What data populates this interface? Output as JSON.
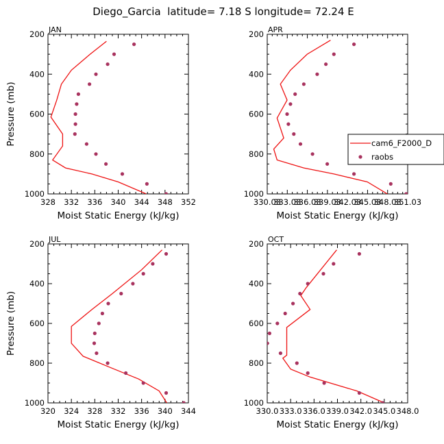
{
  "figure_title": "Diego_Garcia  latitude= 7.18 S longitude= 72.24 E",
  "colors": {
    "model": "#ee1111",
    "obs": "#a8325e",
    "axis": "#000000"
  },
  "chart_data": [
    {
      "type": "line",
      "panel_label": "JAN",
      "xlabel": "Moist Static Energy (kJ/kg)",
      "ylabel": "Pressure (mb)",
      "xlim": [
        328,
        352
      ],
      "ylim": [
        1000,
        200
      ],
      "x_ticks": [
        "328",
        "332",
        "336",
        "340",
        "344",
        "348",
        "352"
      ],
      "y_ticks": [
        "200",
        "400",
        "600",
        "800",
        "1000"
      ],
      "series": [
        {
          "name": "cam6_F2000_D",
          "style": "line",
          "points": [
            [
              338.0,
              235
            ],
            [
              335.2,
              300
            ],
            [
              332.0,
              380
            ],
            [
              330.3,
              450
            ],
            [
              329.5,
              530
            ],
            [
              328.5,
              615
            ],
            [
              330.5,
              700
            ],
            [
              330.5,
              760
            ],
            [
              328.8,
              830
            ],
            [
              331.0,
              870
            ],
            [
              335.5,
              900
            ],
            [
              340.0,
              940
            ],
            [
              344.8,
              1000
            ]
          ]
        },
        {
          "name": "raobs",
          "style": "marker",
          "points": [
            [
              342.7,
              250
            ],
            [
              339.3,
              300
            ],
            [
              338.2,
              350
            ],
            [
              336.2,
              400
            ],
            [
              335.1,
              450
            ],
            [
              333.2,
              500
            ],
            [
              332.9,
              550
            ],
            [
              332.7,
              600
            ],
            [
              332.7,
              650
            ],
            [
              332.6,
              700
            ],
            [
              334.6,
              750
            ],
            [
              336.2,
              800
            ],
            [
              337.9,
              850
            ],
            [
              340.7,
              900
            ],
            [
              344.9,
              950
            ],
            [
              348.2,
              1000
            ]
          ]
        }
      ]
    },
    {
      "type": "line",
      "panel_label": "APR",
      "xlabel": "Moist Static Energy (kJ/kg)",
      "ylabel": "",
      "xlim": [
        330.03,
        351.03
      ],
      "ylim": [
        1000,
        200
      ],
      "x_ticks": [
        "330.03",
        "333.03",
        "336.03",
        "339.03",
        "342.03",
        "345.03",
        "348.03",
        "351.03"
      ],
      "y_ticks": [
        "200",
        "400",
        "600",
        "800",
        "1000"
      ],
      "legend": {
        "placement": "middle-right",
        "entries": [
          "cam6_F2000_D",
          "raobs"
        ]
      },
      "series": [
        {
          "name": "cam6_F2000_D",
          "style": "line",
          "points": [
            [
              339.5,
              230
            ],
            [
              336.0,
              300
            ],
            [
              333.5,
              380
            ],
            [
              332.0,
              450
            ],
            [
              333.0,
              530
            ],
            [
              331.5,
              620
            ],
            [
              332.5,
              720
            ],
            [
              331.0,
              775
            ],
            [
              331.5,
              830
            ],
            [
              335.5,
              870
            ],
            [
              340.0,
              900
            ],
            [
              345.0,
              940
            ],
            [
              348.0,
              1000
            ]
          ]
        },
        {
          "name": "raobs",
          "style": "marker",
          "points": [
            [
              343.0,
              250
            ],
            [
              340.0,
              300
            ],
            [
              338.8,
              350
            ],
            [
              337.5,
              400
            ],
            [
              335.5,
              450
            ],
            [
              334.2,
              500
            ],
            [
              333.5,
              550
            ],
            [
              333.0,
              600
            ],
            [
              333.2,
              650
            ],
            [
              334.0,
              700
            ],
            [
              335.0,
              750
            ],
            [
              336.8,
              800
            ],
            [
              339.0,
              850
            ],
            [
              343.0,
              900
            ],
            [
              348.5,
              950
            ],
            [
              350.8,
              1000
            ]
          ]
        }
      ]
    },
    {
      "type": "line",
      "panel_label": "JUL",
      "xlabel": "Moist Static Energy (kJ/kg)",
      "ylabel": "Pressure (mb)",
      "xlim": [
        320,
        344
      ],
      "ylim": [
        1000,
        200
      ],
      "x_ticks": [
        "320",
        "324",
        "328",
        "332",
        "336",
        "340",
        "344"
      ],
      "y_ticks": [
        "200",
        "400",
        "600",
        "800",
        "1000"
      ],
      "series": [
        {
          "name": "cam6_F2000_D",
          "style": "line",
          "points": [
            [
              339.5,
              230
            ],
            [
              336.0,
              330
            ],
            [
              331.0,
              450
            ],
            [
              327.5,
              530
            ],
            [
              324.0,
              615
            ],
            [
              324.0,
              700
            ],
            [
              326.0,
              765
            ],
            [
              330.5,
              820
            ],
            [
              335.5,
              880
            ],
            [
              339.0,
              940
            ],
            [
              340.3,
              1000
            ]
          ]
        },
        {
          "name": "raobs",
          "style": "marker",
          "points": [
            [
              340.2,
              250
            ],
            [
              337.9,
              300
            ],
            [
              336.3,
              350
            ],
            [
              334.5,
              400
            ],
            [
              332.5,
              450
            ],
            [
              330.3,
              500
            ],
            [
              329.3,
              550
            ],
            [
              328.7,
              600
            ],
            [
              328.0,
              650
            ],
            [
              327.9,
              700
            ],
            [
              328.3,
              750
            ],
            [
              330.2,
              800
            ],
            [
              333.3,
              850
            ],
            [
              336.3,
              900
            ],
            [
              340.2,
              950
            ],
            [
              343.2,
              1000
            ]
          ]
        }
      ]
    },
    {
      "type": "line",
      "panel_label": "OCT",
      "xlabel": "Moist Static Energy (kJ/kg)",
      "ylabel": "",
      "xlim": [
        330.0,
        348.0
      ],
      "ylim": [
        1000,
        200
      ],
      "x_ticks": [
        "330.0",
        "333.0",
        "336.0",
        "339.0",
        "342.0",
        "345.0",
        "348.0"
      ],
      "y_ticks": [
        "200",
        "400",
        "600",
        "800",
        "1000"
      ],
      "series": [
        {
          "name": "cam6_F2000_D",
          "style": "line",
          "points": [
            [
              338.9,
              230
            ],
            [
              335.0,
              420
            ],
            [
              334.3,
              460
            ],
            [
              335.5,
              530
            ],
            [
              332.5,
              620
            ],
            [
              332.5,
              760
            ],
            [
              332.0,
              775
            ],
            [
              333.0,
              830
            ],
            [
              335.5,
              870
            ],
            [
              341.5,
              940
            ],
            [
              345.0,
              1000
            ]
          ]
        },
        {
          "name": "raobs",
          "style": "marker",
          "points": [
            [
              341.8,
              250
            ],
            [
              338.5,
              300
            ],
            [
              337.2,
              350
            ],
            [
              335.2,
              400
            ],
            [
              334.2,
              450
            ],
            [
              333.3,
              500
            ],
            [
              332.3,
              550
            ],
            [
              331.3,
              600
            ],
            [
              330.3,
              650
            ],
            [
              330.0,
              700
            ],
            [
              331.7,
              750
            ],
            [
              333.8,
              800
            ],
            [
              335.2,
              850
            ],
            [
              337.3,
              900
            ],
            [
              341.8,
              950
            ],
            [
              344.8,
              1000
            ]
          ]
        }
      ]
    }
  ]
}
